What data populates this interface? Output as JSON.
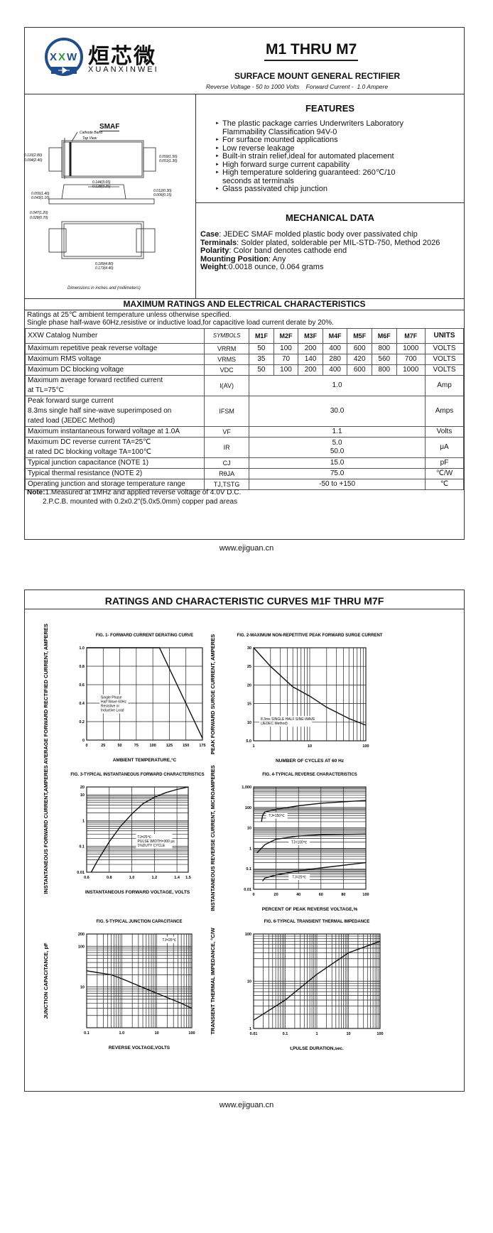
{
  "header": {
    "logo_text": "XXW",
    "logo_cn": "烜芯微",
    "logo_en": "XUANXINWEI",
    "part": "M1 THRU M7",
    "subtitle": "SURFACE MOUNT GENERAL RECTIFIER",
    "spec_line": "Reverse Voltage - 50 to 1000 Volts    Forward Current -  1.0 Ampere"
  },
  "package": {
    "title": "SMAF",
    "cathode": "Cathode Band",
    "top_view": "Top View",
    "dims": [
      "0.110(2.80)",
      "0.094(2.40)",
      "0.059(1.50)",
      "0.051(1.30)",
      "0.144(3.65)",
      "0.128(3.25)",
      "0.055(1.40)",
      "0.043(1.10)",
      "0.012(0.30)",
      "0.006(0.15)",
      "0.047(1.20)",
      "0.028(0.70)",
      "0.189(4.80)",
      "0.173(4.40)"
    ],
    "note": "Dimensions in inches and (millimeters)"
  },
  "features": {
    "title": "FEATURES",
    "items": [
      "The plastic package carries Underwriters Laboratory Flammability Classification 94V-0",
      "For surface mounted applications",
      "Low reverse leakage",
      "Built-in strain relief,ideal for automated placement",
      "High forward surge current capability",
      "High temperature soldering guaranteed: 260℃/10 seconds at terminals",
      "Glass passivated chip junction"
    ]
  },
  "mechanical": {
    "title": "MECHANICAL DATA",
    "items": [
      {
        "k": "Case",
        "v": ": JEDEC SMAF molded plastic body over passivated chip"
      },
      {
        "k": "Terminals",
        "v": ": Solder plated, solderable per MIL-STD-750, Method 2026"
      },
      {
        "k": "Polarity",
        "v": ": Color band denotes cathode end"
      },
      {
        "k": "Mounting Position",
        "v": ": Any"
      },
      {
        "k": "Weight",
        "v": ":0.0018 ounce, 0.064 grams"
      }
    ]
  },
  "ratings": {
    "title": "MAXIMUM RATINGS AND ELECTRICAL CHARACTERISTICS",
    "intro1": "Ratings at 25℃ ambient temperature unless otherwise specified.",
    "intro2": "Single phase half-wave 60Hz,resistive or inductive load,for capacitive load current derate by 20%.",
    "headers": [
      "XXW Catalog  Number",
      "SYMBOLS",
      "M1F",
      "M2F",
      "M3F",
      "M4F",
      "M5F",
      "M6F",
      "M7F",
      "UNITS"
    ],
    "rows": [
      {
        "p": "Maximum repetitive peak reverse voltage",
        "s": "VRRM",
        "v": [
          "50",
          "100",
          "200",
          "400",
          "600",
          "800",
          "1000"
        ],
        "u": "VOLTS"
      },
      {
        "p": "Maximum RMS voltage",
        "s": "VRMS",
        "v": [
          "35",
          "70",
          "140",
          "280",
          "420",
          "560",
          "700"
        ],
        "u": "VOLTS"
      },
      {
        "p": "Maximum DC blocking voltage",
        "s": "VDC",
        "v": [
          "50",
          "100",
          "200",
          "400",
          "600",
          "800",
          "1000"
        ],
        "u": "VOLTS"
      },
      {
        "p": "Maximum average forward rectified current\nat TL=75°C",
        "s": "I(AV)",
        "all": "1.0",
        "u": "Amp"
      },
      {
        "p": "Peak forward surge current\n8.3ms single half sine-wave superimposed on\nrated load (JEDEC Method)",
        "s": "IFSM",
        "all": "30.0",
        "u": "Amps"
      },
      {
        "p": "Maximum instantaneous forward voltage at 1.0A",
        "s": "VF",
        "all": "1.1",
        "u": "Volts"
      },
      {
        "p": "Maximum DC reverse current       TA=25℃\nat rated DC blocking voltage       TA=100℃",
        "s": "IR",
        "all": "5.0\n50.0",
        "u": "μA"
      },
      {
        "p": "Typical junction capacitance (NOTE 1)",
        "s": "CJ",
        "all": "15.0",
        "u": "pF"
      },
      {
        "p": "Typical thermal resistance (NOTE 2)",
        "s": "RθJA",
        "all": "75.0",
        "u": "℃/W"
      },
      {
        "p": "Operating junction and storage temperature range",
        "s": "TJ,TSTG",
        "all": "-50 to +150",
        "u": "℃"
      }
    ],
    "note_label": "Note:",
    "note1": "1.Measured at 1MHz and applied reverse voltage of 4.0V D.C.",
    "note2": "2.P.C.B. mounted with 0.2x0.2\"(5.0x5.0mm) copper pad areas"
  },
  "footer": "www.ejiguan.cn",
  "curves_title": "RATINGS AND CHARACTERISTIC CURVES M1F THRU M7F",
  "chart_data": [
    {
      "type": "line",
      "title": "FIG. 1- FORWARD CURRENT DERATING CURVE",
      "xlabel": "AMBIENT TEMPERATURE,°C",
      "ylabel": "AVERAGE FORWARD RECTIFIED CURRENT, AMPERES",
      "xscale": "linear",
      "yscale": "linear",
      "xlim": [
        0,
        175
      ],
      "ylim": [
        0,
        1
      ],
      "xticks": [
        "0",
        "25",
        "50",
        "75",
        "100",
        "125",
        "150",
        "175"
      ],
      "yticks": [
        "0",
        "0.2",
        "0.4",
        "0.6",
        "0.8",
        "1.0"
      ],
      "grid": true,
      "annotations": [
        "Single Phase",
        "Half Wave 60Hz",
        "Resistive or",
        "Inductive Load"
      ],
      "series": [
        {
          "x": [
            0,
            110,
            175
          ],
          "y": [
            1,
            1,
            0.02
          ]
        }
      ]
    },
    {
      "type": "line",
      "title": "FIG. 2-MAXIMUM NON-REPETITIVE PEAK FORWARD SURGE CURRENT",
      "xlabel": "NUMBER OF CYCLES AT 60 Hz",
      "ylabel": "PEAK FORWARD SURGE CURRENT, AMPERES",
      "xscale": "log",
      "yscale": "linear",
      "xlim": [
        1,
        100
      ],
      "ylim": [
        5,
        30
      ],
      "xticks": [
        "1",
        "10",
        "100"
      ],
      "yticks": [
        "5.0",
        "10",
        "15",
        "20",
        "25",
        "30"
      ],
      "grid": true,
      "annotations": [
        "8.3ms SINGLE HALF SINE-WAVE",
        "(JEDEC Method)"
      ],
      "series": [
        {
          "x": [
            1,
            2,
            5,
            10,
            20,
            50,
            100
          ],
          "y": [
            30,
            25,
            19.5,
            17,
            14,
            11,
            9.2
          ]
        }
      ]
    },
    {
      "type": "line",
      "title": "FIG. 3-TYPICAL INSTANTANEOUS FORWARD CHARACTERISTICS",
      "xlabel": "INSTANTANEOUS FORWARD VOLTAGE, VOLTS",
      "ylabel": "INSTANTANEOUS FORWARD CURRENT,AMPERES",
      "xscale": "linear",
      "yscale": "log",
      "xlim": [
        0.6,
        1.5
      ],
      "ylim": [
        0.01,
        20
      ],
      "xticks": [
        "0.6",
        "0.8",
        "1.0",
        "1.2",
        "1.4",
        "1.5"
      ],
      "yticks": [
        "0.01",
        "0.1",
        "1",
        "10",
        "20"
      ],
      "grid": true,
      "annotations": [
        "TJ=25℃",
        "PULSE WIDTH=300 μs",
        "1%DUTY CYCLE"
      ],
      "series": [
        {
          "x": [
            0.64,
            0.7,
            0.8,
            0.9,
            1.0,
            1.1,
            1.2,
            1.3,
            1.4,
            1.5
          ],
          "y": [
            0.01,
            0.03,
            0.15,
            0.6,
            1.8,
            4.5,
            8,
            12,
            16,
            20
          ]
        }
      ]
    },
    {
      "type": "line",
      "title": "FIG. 4-TYPICAL REVERSE CHARACTERISTICS",
      "xlabel": "PERCENT OF PEAK REVERSE VOLTAGE,%",
      "ylabel": "INSTANTANEOUS REVERSE CURRENT, MICROAMPERES",
      "xscale": "linear",
      "yscale": "log",
      "xlim": [
        0,
        100
      ],
      "ylim": [
        0.01,
        1000
      ],
      "xticks": [
        "0",
        "20",
        "40",
        "60",
        "80",
        "100"
      ],
      "yticks": [
        "0.01",
        "0.1",
        "1",
        "10",
        "100",
        "1,000"
      ],
      "grid": true,
      "series": [
        {
          "name": "TJ=150℃",
          "x": [
            7,
            8,
            10,
            20,
            40,
            60,
            100
          ],
          "y": [
            20,
            40,
            60,
            80,
            120,
            160,
            220
          ]
        },
        {
          "name": "TJ=100℃",
          "x": [
            3,
            10,
            20,
            40,
            60,
            100
          ],
          "y": [
            0.6,
            1.5,
            2.8,
            4,
            4.6,
            5
          ]
        },
        {
          "name": "TJ=25℃",
          "x": [
            8,
            10,
            20,
            40,
            60,
            100
          ],
          "y": [
            0.025,
            0.035,
            0.05,
            0.08,
            0.11,
            0.2
          ]
        }
      ]
    },
    {
      "type": "line",
      "title": "FIG. 5-TYPICAL JUNCTION CAPACITANCE",
      "xlabel": "REVERSE VOLTAGE,VOLTS",
      "ylabel": "JUNCTION CAPACITANCE, pF",
      "xscale": "log",
      "yscale": "log",
      "xlim": [
        0.1,
        100
      ],
      "ylim": [
        1,
        200
      ],
      "xticks": [
        "0.1",
        "1.0",
        "10",
        "100"
      ],
      "yticks": [
        "10",
        "100",
        "200"
      ],
      "grid": true,
      "annotations": [
        "TJ=25℃"
      ],
      "series": [
        {
          "x": [
            0.1,
            0.5,
            1,
            5,
            10,
            50,
            100
          ],
          "y": [
            25,
            20,
            16,
            9,
            7,
            4,
            3
          ]
        }
      ]
    },
    {
      "type": "line",
      "title": "FIG. 6-TYPICAL TRANSIENT THERMAL IMPEDANCE",
      "xlabel": "t,PULSE DURATION,sec.",
      "ylabel": "TRANSIENT THERMAL IMPEDANCE, °C/W",
      "xscale": "log",
      "yscale": "log",
      "xlim": [
        0.01,
        100
      ],
      "ylim": [
        1,
        100
      ],
      "xticks": [
        "0.01",
        "0.1",
        "1",
        "10",
        "100"
      ],
      "yticks": [
        "1",
        "10",
        "100"
      ],
      "grid": true,
      "series": [
        {
          "x": [
            0.01,
            0.1,
            1,
            10,
            100
          ],
          "y": [
            1.5,
            4,
            14,
            40,
            70
          ]
        }
      ]
    }
  ]
}
